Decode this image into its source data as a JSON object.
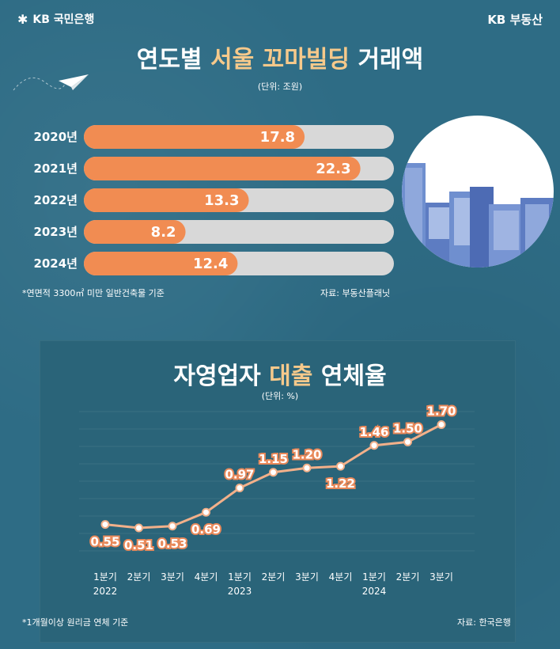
{
  "brand": {
    "left": "KB 국민은행",
    "right": "KB 부동산",
    "left_icon": "kb-star-icon"
  },
  "colors": {
    "background": "#2e6c85",
    "bar": "#f18c52",
    "track": "#d8d8d8",
    "line": "#f2b08a",
    "highlight": "#f6c98b"
  },
  "chart1": {
    "title_pre": "연도별 ",
    "title_hl": "서울 꼬마빌딩",
    "title_post": " 거래액",
    "unit": "(단위: 조원)",
    "note": "*연면적 3300㎡ 미만 일반건축물 기준",
    "source": "자료: 부동산플래닛"
  },
  "chart2": {
    "title_pre": "자영업자 ",
    "title_hl": "대출",
    "title_post": " 연체율",
    "unit": "(단위: %)",
    "note": "*1개월이상 원리금 연체 기준",
    "source": "자료: 한국은행"
  },
  "chart_data": [
    {
      "type": "bar",
      "orientation": "horizontal",
      "title": "연도별 서울 꼬마빌딩 거래액",
      "unit": "(단위: 조원)",
      "categories": [
        "2020년",
        "2021년",
        "2022년",
        "2023년",
        "2024년"
      ],
      "values": [
        17.8,
        22.3,
        13.3,
        8.2,
        12.4
      ],
      "xlim": [
        0,
        25
      ]
    },
    {
      "type": "line",
      "title": "자영업자 대출 연체율",
      "unit": "(단위: %)",
      "categories": [
        "1분기",
        "2분기",
        "3분기",
        "4분기",
        "1분기",
        "2분기",
        "3분기",
        "4분기",
        "1분기",
        "2분기",
        "3분기"
      ],
      "year_labels": [
        "2022",
        "",
        "",
        "",
        "2023",
        "",
        "",
        "",
        "2024",
        "",
        ""
      ],
      "values": [
        0.55,
        0.51,
        0.53,
        0.69,
        0.97,
        1.15,
        1.2,
        1.22,
        1.46,
        1.5,
        1.7
      ],
      "ylim": [
        0.3,
        1.85
      ],
      "grid": true
    }
  ]
}
